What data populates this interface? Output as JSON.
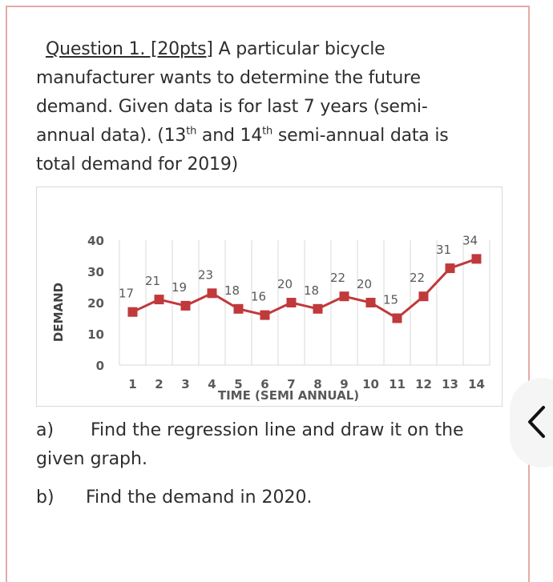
{
  "question": {
    "title": "Question 1. [20pts]",
    "text_line1": " A particular bicycle",
    "text_line2": "manufacturer wants to determine the future",
    "text_line3": "demand.  Given data is for last 7 years (semi-",
    "text_line4a": "annual data).  (13",
    "sup1": "th",
    "text_line4b": " and 14",
    "sup2": "th",
    "text_line4c": " semi-annual data is",
    "text_line5": "total demand for 2019)"
  },
  "parts": [
    {
      "label": "a)",
      "text": "Find the regression line and draw it on the",
      "text2": "given graph."
    },
    {
      "label": "b)",
      "text": "Find the demand in 2020."
    }
  ],
  "colors": {
    "series": "#c0393b",
    "grid": "#d9d9d9",
    "tick_text": "#595959",
    "border": "#e6a9a6"
  },
  "collapse_button": {
    "icon": "chevron-left-icon"
  },
  "chart_data": {
    "type": "line",
    "title": "",
    "xlabel": "TIME (SEMI ANNUAL)",
    "ylabel": "DEMAND",
    "categories": [
      "1",
      "2",
      "3",
      "4",
      "5",
      "6",
      "7",
      "8",
      "9",
      "10",
      "11",
      "12",
      "13",
      "14"
    ],
    "series": [
      {
        "name": "Demand",
        "values": [
          17,
          21,
          19,
          23,
          18,
          16,
          20,
          18,
          22,
          20,
          15,
          22,
          31,
          34
        ],
        "marker": "square",
        "data_labels": true
      }
    ],
    "yticks": [
      "0",
      "10",
      "20",
      "30",
      "40"
    ],
    "ylim": [
      0,
      40
    ],
    "grid": {
      "vertical": true,
      "horizontal": false
    },
    "legend": "none"
  }
}
